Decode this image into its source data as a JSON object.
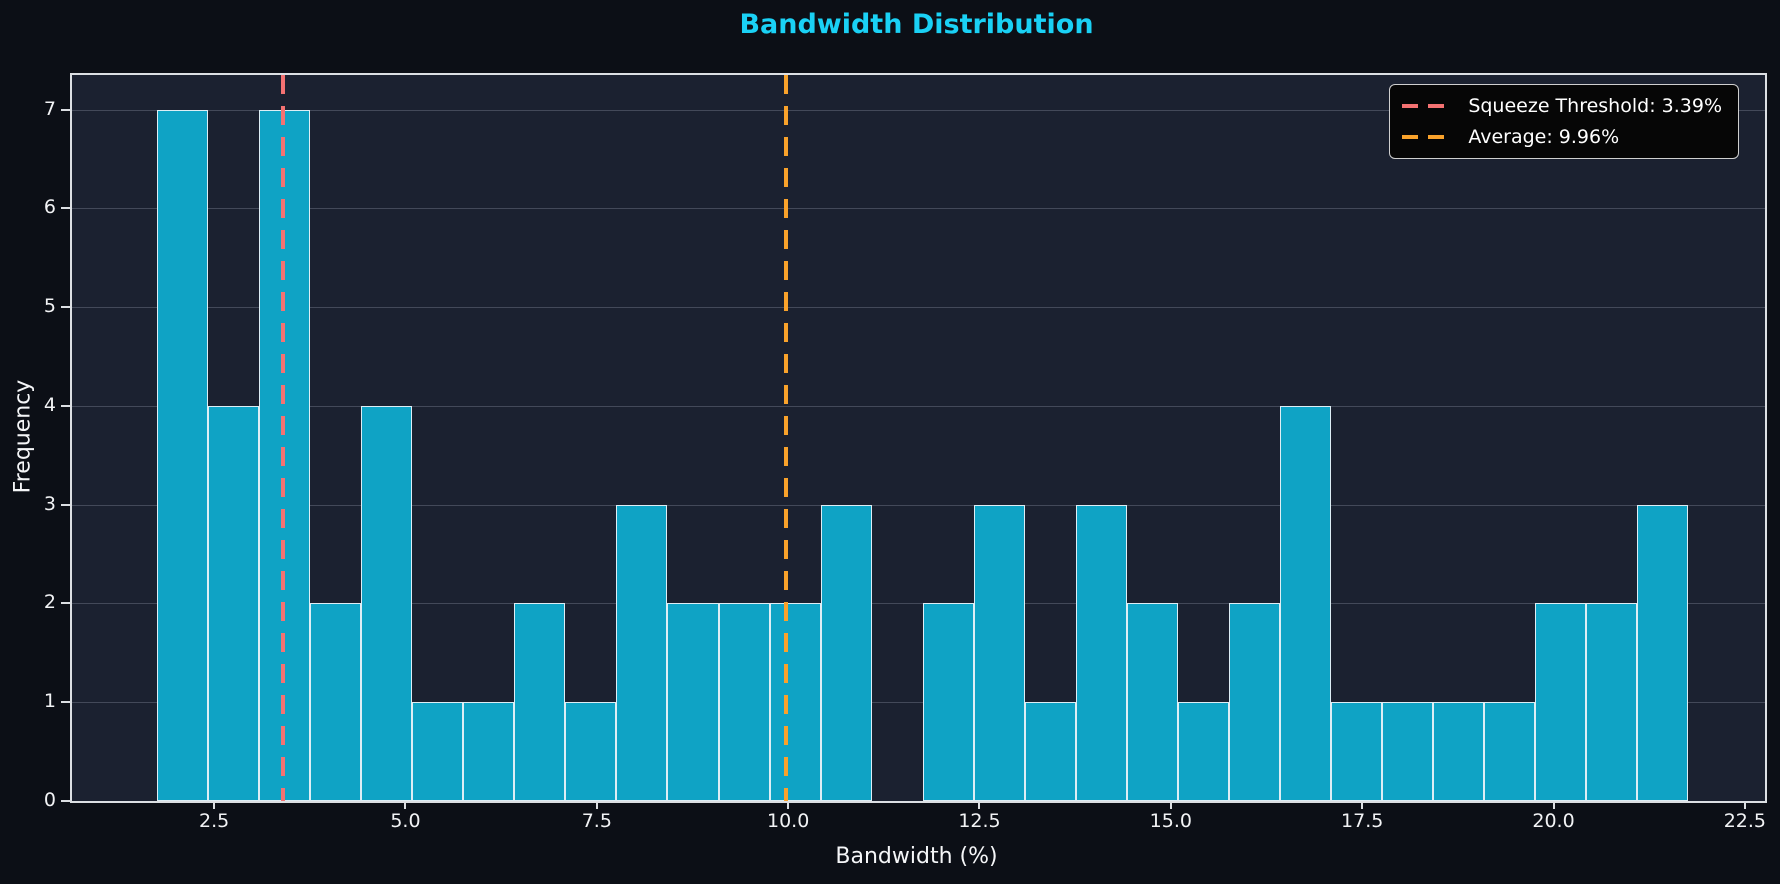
{
  "title": "Bandwidth Distribution",
  "chart_data": {
    "type": "bar",
    "subtype": "histogram",
    "title": "Bandwidth Distribution",
    "xlabel": "Bandwidth (%)",
    "ylabel": "Frequency",
    "bin_start": 1.74,
    "bin_width": 0.667,
    "counts": [
      7,
      4,
      7,
      2,
      4,
      1,
      1,
      2,
      1,
      3,
      2,
      2,
      2,
      3,
      0,
      2,
      3,
      1,
      3,
      2,
      1,
      2,
      4,
      1,
      1,
      1,
      1,
      2,
      2,
      3
    ],
    "xlim": [
      0.63,
      22.75
    ],
    "ylim": [
      0,
      7.35
    ],
    "xticks": [
      {
        "value": 2.5,
        "label": "2.5"
      },
      {
        "value": 5.0,
        "label": "5.0"
      },
      {
        "value": 7.5,
        "label": "7.5"
      },
      {
        "value": 10.0,
        "label": "10.0"
      },
      {
        "value": 12.5,
        "label": "12.5"
      },
      {
        "value": 15.0,
        "label": "15.0"
      },
      {
        "value": 17.5,
        "label": "17.5"
      },
      {
        "value": 20.0,
        "label": "20.0"
      },
      {
        "value": 22.5,
        "label": "22.5"
      }
    ],
    "yticks": [
      0,
      1,
      2,
      3,
      4,
      5,
      6,
      7
    ],
    "grid": "horizontal",
    "legend_position": "top-right",
    "vlines": [
      {
        "name": "squeeze-threshold",
        "value": 3.39,
        "label": "Squeeze Threshold: 3.39%",
        "color": "#f47272"
      },
      {
        "name": "average",
        "value": 9.96,
        "label": "Average: 9.96%",
        "color": "#f9a22b"
      }
    ]
  },
  "colors": {
    "figure_background": "#0c0f16",
    "axes_background": "#1b2130",
    "bar_fill": "#0fa3c5",
    "bar_edge": "#f0f4f8",
    "title": "#1ad1f5",
    "text": "#f2f3f5",
    "gridline": "#aab5c7",
    "spine": "#dcdfe3",
    "threshold_line": "#f47272",
    "average_line": "#f9a22b",
    "legend_background": "#060606",
    "legend_border": "#cfcfcf"
  }
}
